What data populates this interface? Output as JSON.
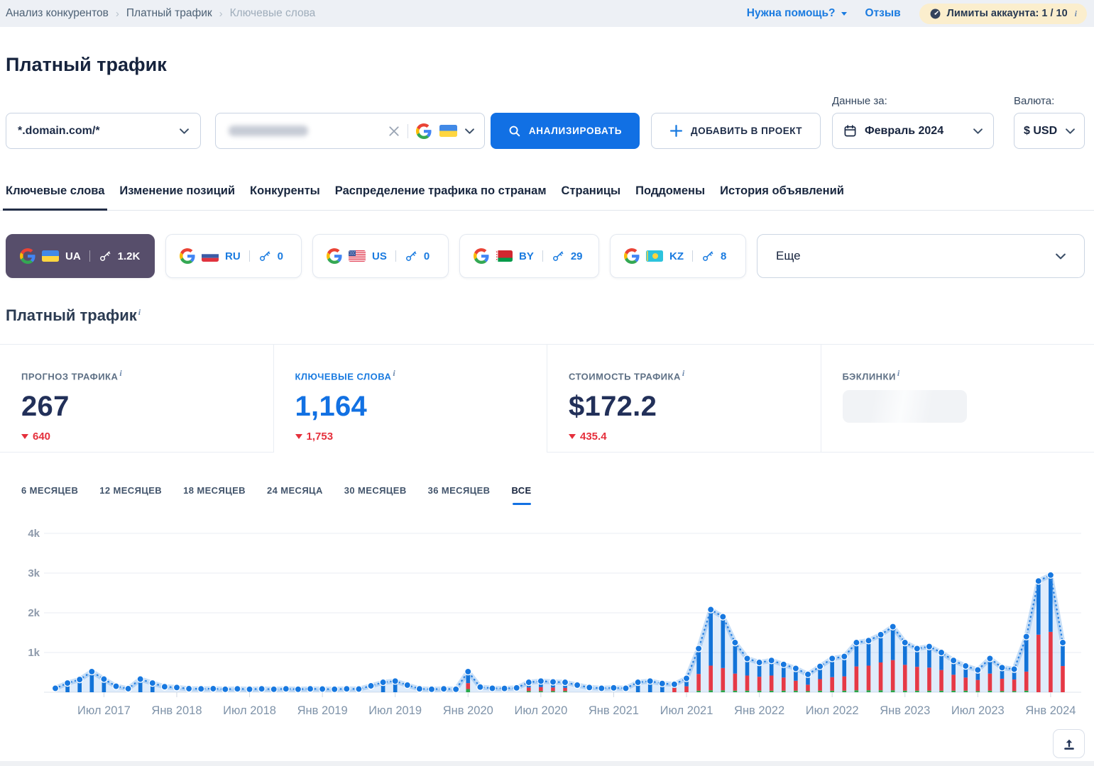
{
  "ui": {
    "info_mark": "i"
  },
  "breadcrumb": {
    "separator": "›",
    "items": [
      "Анализ конкурентов",
      "Платный трафик",
      "Ключевые слова"
    ]
  },
  "topbar": {
    "help_link": "Нужна помощь?",
    "feedback_link": "Отзыв",
    "limits_text": "Лимиты аккаунта: 1 / 10"
  },
  "page": {
    "title": "Платный трафик"
  },
  "controls": {
    "pattern_select": "*.domain.com/*",
    "analyze_button": "АНАЛИЗИРОВАТЬ",
    "add_to_project_button": "ДОБАВИТЬ В ПРОЕКТ",
    "data_for_label": "Данные за:",
    "date_select": "Февраль 2024",
    "currency_label": "Валюта:",
    "currency_select": "$ USD"
  },
  "tabs": {
    "items": [
      "Ключевые слова",
      "Изменение позиций",
      "Конкуренты",
      "Распределение трафика по странам",
      "Страницы",
      "Поддомены",
      "История объявлений"
    ]
  },
  "regions": {
    "buttons": [
      {
        "code": "UA",
        "count": "1.2K"
      },
      {
        "code": "RU",
        "count": "0"
      },
      {
        "code": "US",
        "count": "0"
      },
      {
        "code": "BY",
        "count": "29"
      },
      {
        "code": "KZ",
        "count": "8"
      }
    ],
    "more_label": "Еще"
  },
  "section": {
    "title": "Платный трафик"
  },
  "metrics": {
    "cards": [
      {
        "label": "ПРОГНОЗ ТРАФИКА",
        "value": "267",
        "delta": "640"
      },
      {
        "label": "КЛЮЧЕВЫЕ СЛОВА",
        "value": "1,164",
        "delta": "1,753"
      },
      {
        "label": "СТОИМОСТЬ ТРАФИКА",
        "value": "$172.2",
        "delta": "435.4"
      },
      {
        "label": "БЭКЛИНКИ",
        "value": "",
        "delta": ""
      }
    ]
  },
  "periods": {
    "items": [
      "6 МЕСЯЦЕВ",
      "12 МЕСЯЦЕВ",
      "18 МЕСЯЦЕВ",
      "24 МЕСЯЦА",
      "30 МЕСЯЦЕВ",
      "36 МЕСЯЦЕВ",
      "ВСЕ"
    ]
  },
  "chart_data": {
    "type": "line+bar",
    "title": "Платный трафик",
    "x_unit": "month",
    "x_range": [
      "Мар 2017",
      "Фев 2024"
    ],
    "ylim": [
      0,
      4000
    ],
    "grid": true,
    "legend": false,
    "yticks": [
      1000,
      2000,
      3000,
      4000
    ],
    "ytick_labels": [
      "1k",
      "2k",
      "3k",
      "4k"
    ],
    "tick_indices": [
      4,
      10,
      16,
      22,
      28,
      34,
      40,
      46,
      52,
      58,
      64,
      70,
      76,
      82
    ],
    "tick_labels": [
      "Июл 2017",
      "Янв 2018",
      "Июл 2018",
      "Янв 2019",
      "Июл 2019",
      "Янв 2020",
      "Июл 2020",
      "Янв 2021",
      "Июл 2021",
      "Янв 2022",
      "Июл 2022",
      "Янв 2023",
      "Июл 2023",
      "Янв 2024"
    ],
    "series": [
      {
        "name": "Прогноз трафика",
        "type": "line",
        "color": "#2982e2",
        "values": [
          100,
          230,
          320,
          520,
          330,
          150,
          90,
          330,
          230,
          140,
          120,
          90,
          85,
          90,
          75,
          85,
          75,
          85,
          75,
          85,
          75,
          85,
          80,
          75,
          85,
          80,
          160,
          250,
          280,
          180,
          85,
          75,
          85,
          75,
          520,
          130,
          100,
          95,
          110,
          250,
          280,
          260,
          250,
          180,
          120,
          100,
          110,
          100,
          250,
          280,
          220,
          200,
          350,
          1100,
          2080,
          1900,
          1250,
          850,
          750,
          800,
          700,
          600,
          450,
          650,
          850,
          900,
          1250,
          1300,
          1450,
          1650,
          1250,
          1100,
          1150,
          1000,
          800,
          660,
          560,
          850,
          620,
          580,
          1400,
          2800,
          2950,
          1250
        ]
      },
      {
        "name": "Стоимость",
        "type": "bar",
        "color": "#e63946",
        "values": [
          0,
          0,
          0,
          0,
          0,
          0,
          0,
          0,
          0,
          0,
          0,
          0,
          0,
          0,
          0,
          0,
          0,
          0,
          0,
          0,
          0,
          0,
          0,
          0,
          0,
          0,
          0,
          0,
          0,
          0,
          0,
          0,
          0,
          0,
          150,
          0,
          0,
          0,
          0,
          90,
          100,
          90,
          80,
          0,
          0,
          0,
          0,
          0,
          0,
          0,
          0,
          110,
          150,
          420,
          620,
          560,
          430,
          380,
          350,
          380,
          330,
          250,
          160,
          290,
          340,
          360,
          600,
          620,
          700,
          760,
          650,
          600,
          580,
          520,
          400,
          330,
          280,
          430,
          310,
          290,
          480,
          1450,
          1520,
          660
        ]
      },
      {
        "name": "Ключевые слова",
        "type": "bar",
        "color": "#2ba84a",
        "values": [
          0,
          0,
          0,
          0,
          0,
          0,
          0,
          0,
          0,
          0,
          0,
          0,
          0,
          0,
          0,
          0,
          0,
          0,
          0,
          0,
          0,
          0,
          0,
          0,
          0,
          0,
          0,
          0,
          0,
          0,
          0,
          0,
          0,
          0,
          80,
          0,
          0,
          0,
          0,
          30,
          30,
          30,
          30,
          0,
          0,
          0,
          0,
          0,
          0,
          0,
          0,
          0,
          0,
          40,
          50,
          50,
          40,
          40,
          40,
          40,
          40,
          40,
          30,
          40,
          40,
          40,
          50,
          50,
          50,
          50,
          40,
          40,
          40,
          40,
          40,
          40,
          30,
          40,
          30,
          30,
          40,
          0,
          0,
          0
        ]
      }
    ]
  }
}
